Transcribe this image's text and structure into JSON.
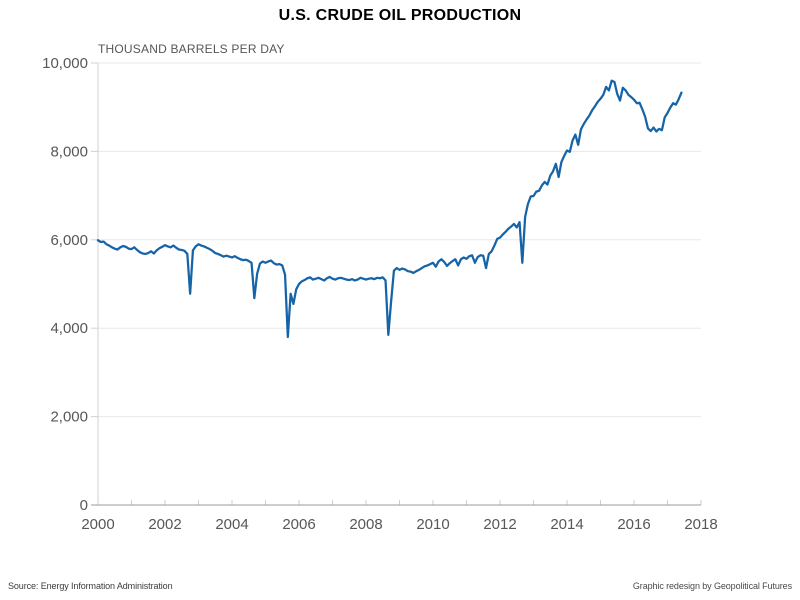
{
  "header": {
    "title": "U.S. CRUDE OIL PRODUCTION"
  },
  "footer": {
    "source": "Source: Energy Information Administration",
    "credit": "Graphic redesign by Geopolitical Futures"
  },
  "chart_data": {
    "type": "line",
    "title": "U.S. CRUDE OIL PRODUCTION",
    "ylabel": "THOUSAND BARRELS PER DAY",
    "xlabel": "",
    "line_color": "#1564a8",
    "grid": "horizontal",
    "legend": "none",
    "xlim": [
      2000,
      2018
    ],
    "ylim": [
      0,
      10000
    ],
    "x_tick_labels": [
      "2000",
      "2002",
      "2004",
      "2006",
      "2008",
      "2010",
      "2012",
      "2014",
      "2016",
      "2018"
    ],
    "x_ticks": [
      2000,
      2002,
      2004,
      2006,
      2008,
      2010,
      2012,
      2014,
      2016,
      2018
    ],
    "x_minor_tick_every_years": 1,
    "y_ticks": [
      0,
      2000,
      4000,
      6000,
      8000,
      10000
    ],
    "y_tick_labels": [
      "0",
      "2,000",
      "4,000",
      "6,000",
      "8,000",
      "10,000"
    ],
    "series": [
      {
        "name": "U.S. crude oil production (thousand barrels per day)",
        "frequency": "monthly",
        "start_year": 2000,
        "start_month": 1,
        "end_year": 2017,
        "end_month": 6,
        "values": [
          5990,
          5950,
          5960,
          5900,
          5870,
          5830,
          5800,
          5780,
          5830,
          5860,
          5840,
          5800,
          5790,
          5830,
          5770,
          5720,
          5690,
          5680,
          5700,
          5740,
          5690,
          5760,
          5810,
          5840,
          5880,
          5850,
          5830,
          5870,
          5820,
          5780,
          5770,
          5750,
          5680,
          4780,
          5760,
          5850,
          5900,
          5870,
          5850,
          5820,
          5790,
          5750,
          5700,
          5680,
          5650,
          5620,
          5640,
          5620,
          5600,
          5630,
          5590,
          5560,
          5540,
          5550,
          5520,
          5480,
          4680,
          5230,
          5460,
          5510,
          5480,
          5510,
          5530,
          5470,
          5440,
          5450,
          5420,
          5210,
          3800,
          4780,
          4550,
          4880,
          5000,
          5060,
          5090,
          5130,
          5150,
          5100,
          5120,
          5140,
          5110,
          5080,
          5130,
          5160,
          5120,
          5100,
          5130,
          5140,
          5120,
          5100,
          5090,
          5110,
          5080,
          5100,
          5140,
          5120,
          5100,
          5120,
          5130,
          5110,
          5140,
          5130,
          5150,
          5080,
          3850,
          4610,
          5300,
          5360,
          5320,
          5350,
          5330,
          5290,
          5280,
          5250,
          5290,
          5320,
          5360,
          5400,
          5420,
          5450,
          5480,
          5390,
          5510,
          5560,
          5500,
          5410,
          5470,
          5520,
          5560,
          5420,
          5560,
          5600,
          5570,
          5630,
          5650,
          5480,
          5610,
          5650,
          5640,
          5360,
          5680,
          5740,
          5870,
          6020,
          6050,
          6120,
          6180,
          6250,
          6300,
          6360,
          6280,
          6400,
          5480,
          6520,
          6810,
          6980,
          6990,
          7090,
          7110,
          7230,
          7310,
          7250,
          7450,
          7550,
          7720,
          7420,
          7760,
          7900,
          8020,
          7990,
          8250,
          8380,
          8150,
          8500,
          8620,
          8720,
          8810,
          8930,
          9020,
          9120,
          9190,
          9280,
          9460,
          9380,
          9600,
          9570,
          9300,
          9150,
          9440,
          9380,
          9280,
          9230,
          9170,
          9090,
          9100,
          8950,
          8780,
          8520,
          8460,
          8540,
          8450,
          8510,
          8480,
          8770,
          8870,
          8990,
          9090,
          9060,
          9180,
          9330
        ]
      }
    ],
    "annotations": []
  }
}
